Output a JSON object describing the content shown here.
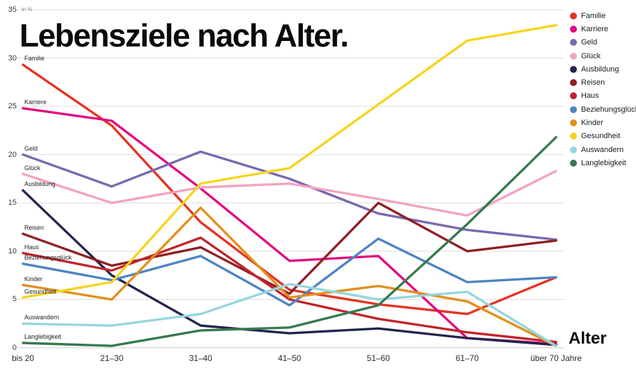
{
  "title": "Lebensziele nach Alter.",
  "y_axis": {
    "unit_label": "in %",
    "ticks": [
      35,
      30,
      25,
      20,
      15,
      10,
      5,
      0
    ]
  },
  "x_axis": {
    "label": "Alter"
  },
  "chart_data": {
    "type": "line",
    "title": "Lebensziele nach Alter.",
    "xlabel": "Alter",
    "ylabel": "in %",
    "ylim": [
      0,
      35
    ],
    "grid": true,
    "legend_position": "top-right",
    "categories": [
      "bis 20",
      "21–30",
      "31–40",
      "41–50",
      "51–60",
      "61–70",
      "über 70 Jahre"
    ],
    "series": [
      {
        "name": "Familie",
        "color": "#e63323",
        "values": [
          29.3,
          23.0,
          13.0,
          6.0,
          4.5,
          3.5,
          7.3
        ]
      },
      {
        "name": "Karriere",
        "color": "#e40980",
        "values": [
          24.8,
          23.5,
          16.5,
          9.0,
          9.5,
          1.0,
          0.4
        ]
      },
      {
        "name": "Geld",
        "color": "#7b68ae",
        "values": [
          20.0,
          16.7,
          20.3,
          17.5,
          13.9,
          12.2,
          11.2
        ]
      },
      {
        "name": "Glück",
        "color": "#f2a3c4",
        "values": [
          18.0,
          15.0,
          16.6,
          17.0,
          15.4,
          13.7,
          18.3
        ]
      },
      {
        "name": "Ausbildung",
        "color": "#23254e",
        "values": [
          16.3,
          7.5,
          2.3,
          1.5,
          2.0,
          1.0,
          0.3
        ]
      },
      {
        "name": "Reisen",
        "color": "#8e2023",
        "values": [
          11.8,
          8.5,
          10.4,
          5.6,
          15.0,
          10.0,
          11.1
        ]
      },
      {
        "name": "Haus",
        "color": "#c2242b",
        "values": [
          9.8,
          8.0,
          11.4,
          5.0,
          3.0,
          1.6,
          0.6
        ]
      },
      {
        "name": "Beziehungsglück",
        "color": "#4e84c4",
        "values": [
          8.7,
          7.0,
          9.5,
          4.4,
          11.3,
          6.8,
          7.3
        ]
      },
      {
        "name": "Kinder",
        "color": "#e2901f",
        "values": [
          6.5,
          5.0,
          14.5,
          5.2,
          6.4,
          4.8,
          0.2
        ]
      },
      {
        "name": "Gesundheit",
        "color": "#f6d41f",
        "values": [
          5.2,
          6.8,
          17.0,
          18.6,
          25.2,
          31.8,
          33.4
        ]
      },
      {
        "name": "Auswandern",
        "color": "#96d6de",
        "values": [
          2.5,
          2.3,
          3.5,
          6.6,
          5.0,
          5.8,
          0.2
        ]
      },
      {
        "name": "Langlebigkeit",
        "color": "#377a4e",
        "values": [
          0.5,
          0.2,
          1.8,
          2.1,
          4.4,
          12.8,
          21.8
        ]
      }
    ]
  }
}
